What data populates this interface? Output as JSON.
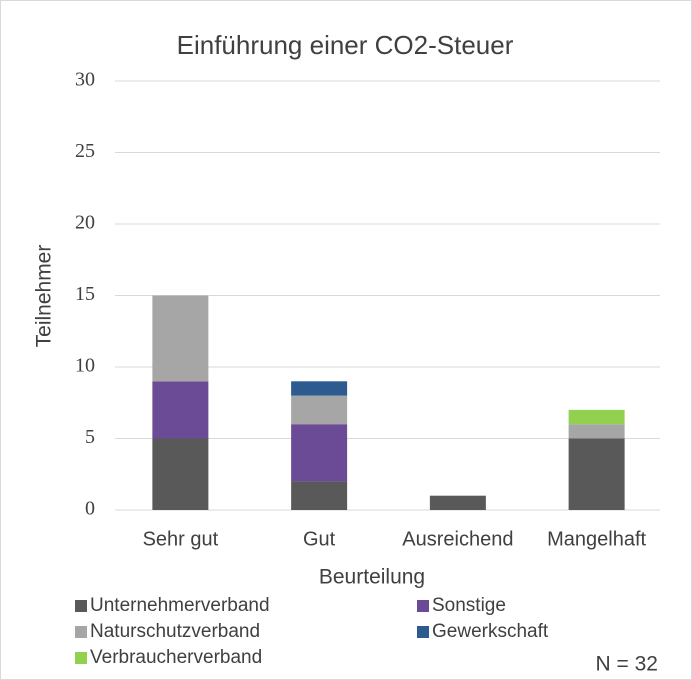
{
  "chart_data": {
    "type": "stacked_bar",
    "title": "Einführung einer CO2-Steuer",
    "x_label": "Beurteilung",
    "y_label": "Teilnehmer",
    "annotation": "N = 32",
    "categories": [
      "Sehr gut",
      "Gut",
      "Ausreichend",
      "Mangelhaft"
    ],
    "series": [
      {
        "name": "Unternehmerverband",
        "color": "#595959",
        "values": [
          5,
          2,
          1,
          5
        ]
      },
      {
        "name": "Sonstige",
        "color": "#6b4a96",
        "values": [
          4,
          4,
          0,
          0
        ]
      },
      {
        "name": "Naturschutzverband",
        "color": "#a6a6a6",
        "values": [
          6,
          2,
          0,
          1
        ]
      },
      {
        "name": "Gewerkschaft",
        "color": "#2e5b8f",
        "values": [
          0,
          1,
          0,
          0
        ]
      },
      {
        "name": "Verbraucherverband",
        "color": "#92d050",
        "values": [
          0,
          0,
          0,
          1
        ]
      }
    ],
    "ylim": [
      0,
      30
    ],
    "yticks": [
      0,
      5,
      10,
      15,
      20,
      25,
      30
    ],
    "grid": true
  }
}
